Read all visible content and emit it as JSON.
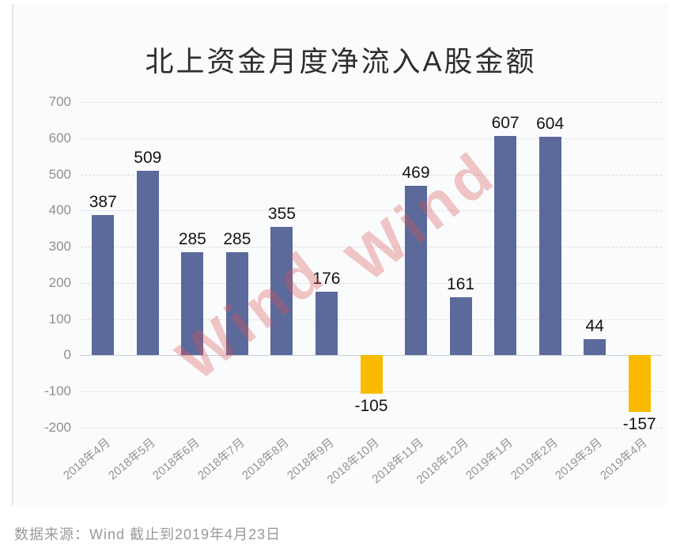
{
  "title": "北上资金月度净流入A股金额",
  "source_note": "数据来源：Wind  截止到2019年4月23日",
  "watermark": {
    "text": "Wind",
    "color": "#db5555"
  },
  "colors": {
    "positive_bar": "#5B699B",
    "negative_bar": "#F8BB00",
    "grid": "#dcdcdc",
    "zero_line": "#c8ccd2",
    "axis_label": "#8f8f8f",
    "value_label": "#141414",
    "panel_bg": "#fafbfd",
    "watermark": "rgba(219,85,85,0.33)"
  },
  "chart_data": {
    "type": "bar",
    "title": "北上资金月度净流入A股金额",
    "categories": [
      "2018年4月",
      "2018年5月",
      "2018年6月",
      "2018年7月",
      "2018年8月",
      "2018年9月",
      "2018年10月",
      "2018年11月",
      "2018年12月",
      "2019年1月",
      "2019年2月",
      "2019年3月",
      "2019年4月"
    ],
    "values": [
      387,
      509,
      285,
      285,
      355,
      176,
      -105,
      469,
      161,
      607,
      604,
      44,
      -157
    ],
    "xlabel": "",
    "ylabel": "",
    "ylim": [
      -200,
      700
    ],
    "yticks": [
      700,
      600,
      500,
      400,
      300,
      200,
      100,
      0,
      -100,
      -200
    ],
    "grid": "horizontal-dashed",
    "legend": "none",
    "data_labels": true
  }
}
